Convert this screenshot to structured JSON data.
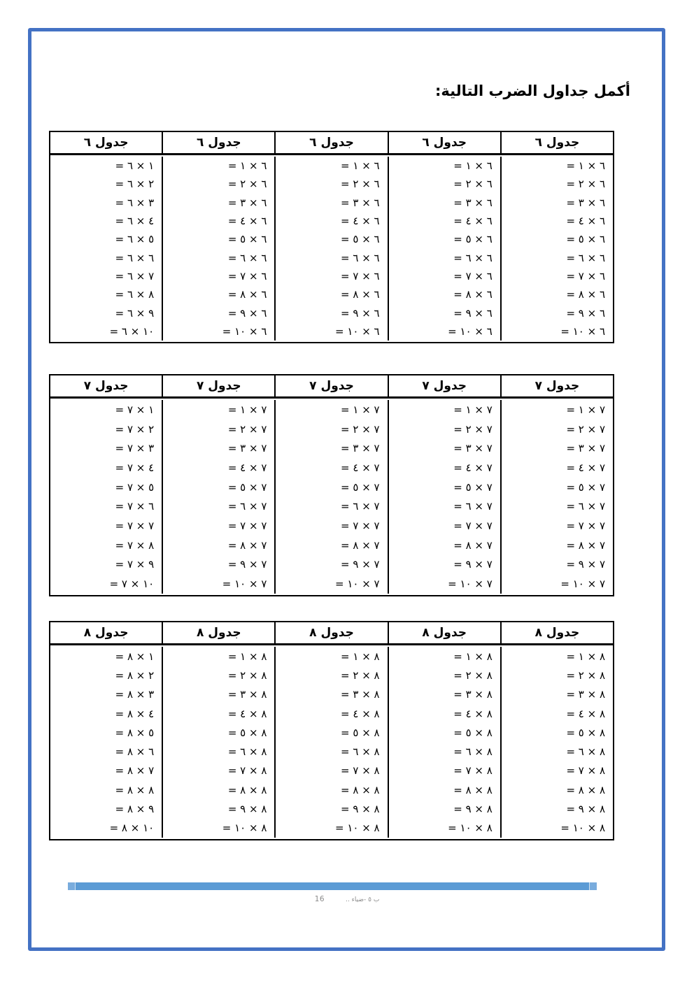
{
  "title": "أكمل جداول الضرب التالية:",
  "colors": {
    "page_border": "#4472C4",
    "table_border": "#000000",
    "footer_bar": "#5B9BD5",
    "footer_bar_cap": "#79ACDD",
    "footer_text": "#8A8A8A"
  },
  "tables": [
    {
      "id": "6",
      "headers": [
        "جدول ٦",
        "جدول ٦",
        "جدول ٦",
        "جدول ٦",
        "جدول ٦"
      ],
      "rows": [
        [
          "١ × ٦ =",
          "٦ × ١ =",
          "٦ × ١ =",
          "٦ × ١ =",
          "٦ × ١ ="
        ],
        [
          "٢ × ٦ =",
          "٦ × ٢ =",
          "٦ × ٢ =",
          "٦ × ٢ =",
          "٦ × ٢ ="
        ],
        [
          "٣ × ٦ =",
          "٦ × ٣ =",
          "٦ × ٣ =",
          "٦ × ٣ =",
          "٦ × ٣ ="
        ],
        [
          "٤ × ٦ =",
          "٦ × ٤ =",
          "٦ × ٤ =",
          "٦ × ٤ =",
          "٦ × ٤ ="
        ],
        [
          "٥ × ٦ =",
          "٦ × ٥ =",
          "٦ × ٥ =",
          "٦ × ٥ =",
          "٦ × ٥ ="
        ],
        [
          "٦ × ٦ =",
          "٦ × ٦ =",
          "٦ × ٦ =",
          "٦ × ٦ =",
          "٦ × ٦ ="
        ],
        [
          "٧ × ٦ =",
          "٦ × ٧ =",
          "٦ × ٧ =",
          "٦ × ٧ =",
          "٦ × ٧ ="
        ],
        [
          "٨ × ٦ =",
          "٦ × ٨ =",
          "٦ × ٨ =",
          "٦ × ٨ =",
          "٦ × ٨ ="
        ],
        [
          "٩ × ٦ =",
          "٦ × ٩ =",
          "٦ × ٩ =",
          "٦ × ٩ =",
          "٦ × ٩ ="
        ],
        [
          "١٠ × ٦ =",
          "٦ × ١٠ =",
          "٦ × ١٠ =",
          "٦ × ١٠ =",
          "٦ × ١٠ ="
        ]
      ]
    },
    {
      "id": "7",
      "headers": [
        "جدول ٧",
        "جدول ٧",
        "جدول ٧",
        "جدول ٧",
        "جدول ٧"
      ],
      "rows": [
        [
          "١ × ٧ =",
          "٧ × ١ =",
          "٧ × ١ =",
          "٧ × ١ =",
          "٧ × ١ ="
        ],
        [
          "٢ × ٧ =",
          "٧ × ٢ =",
          "٧ × ٢ =",
          "٧ × ٢ =",
          "٧ × ٢ ="
        ],
        [
          "٣ × ٧ =",
          "٧ × ٣ =",
          "٧ × ٣ =",
          "٧ × ٣ =",
          "٧ × ٣ ="
        ],
        [
          "٤ × ٧ =",
          "٧ × ٤ =",
          "٧ × ٤ =",
          "٧ × ٤ =",
          "٧ × ٤ ="
        ],
        [
          "٥ × ٧ =",
          "٧ × ٥ =",
          "٧ × ٥ =",
          "٧ × ٥ =",
          "٧ × ٥ ="
        ],
        [
          "٦ × ٧ =",
          "٧ × ٦ =",
          "٧ × ٦ =",
          "٧ × ٦ =",
          "٧ × ٦ ="
        ],
        [
          "٧ × ٧ =",
          "٧ × ٧ =",
          "٧ × ٧ =",
          "٧ × ٧ =",
          "٧ × ٧ ="
        ],
        [
          "٨ × ٧ =",
          "٧ × ٨ =",
          "٧ × ٨ =",
          "٧ × ٨ =",
          "٧ × ٨ ="
        ],
        [
          "٩ × ٧ =",
          "٧ × ٩ =",
          "٧ × ٩ =",
          "٧ × ٩ =",
          "٧ × ٩ ="
        ],
        [
          "١٠ × ٧ =",
          "٧ × ١٠ =",
          "٧ × ١٠ =",
          "٧ × ١٠ =",
          "٧ × ١٠ ="
        ]
      ]
    },
    {
      "id": "8",
      "headers": [
        "جدول ٨",
        "جدول ٨",
        "جدول ٨",
        "جدول ٨",
        "جدول ٨"
      ],
      "rows": [
        [
          "١ × ٨ =",
          "٨ × ١ =",
          "٨ × ١ =",
          "٨ × ١ =",
          "٨ × ١ ="
        ],
        [
          "٢ × ٨ =",
          "٨ × ٢ =",
          "٨ × ٢ =",
          "٨ × ٢ =",
          "٨ × ٢ ="
        ],
        [
          "٣ × ٨ =",
          "٨ × ٣ =",
          "٨ × ٣ =",
          "٨ × ٣ =",
          "٨ × ٣ ="
        ],
        [
          "٤ × ٨ =",
          "٨ × ٤ =",
          "٨ × ٤ =",
          "٨ × ٤ =",
          "٨ × ٤ ="
        ],
        [
          "٥ × ٨ =",
          "٨ × ٥ =",
          "٨ × ٥ =",
          "٨ × ٥ =",
          "٨ × ٥ ="
        ],
        [
          "٦ × ٨ =",
          "٨ × ٦ =",
          "٨ × ٦ =",
          "٨ × ٦ =",
          "٨ × ٦ ="
        ],
        [
          "٧ × ٨ =",
          "٨ × ٧ =",
          "٨ × ٧ =",
          "٨ × ٧ =",
          "٨ × ٧ ="
        ],
        [
          "٨ × ٨ =",
          "٨ × ٨ =",
          "٨ × ٨ =",
          "٨ × ٨ =",
          "٨ × ٨ ="
        ],
        [
          "٩ × ٨ =",
          "٨ × ٩ =",
          "٨ × ٩ =",
          "٨ × ٩ =",
          "٨ × ٩ ="
        ],
        [
          "١٠ × ٨ =",
          "٨ × ١٠ =",
          "٨ × ١٠ =",
          "٨ × ١٠ =",
          "٨ × ١٠ ="
        ]
      ]
    }
  ],
  "footer": {
    "page_number": "16",
    "label": "ب ٥ -ضياء .."
  }
}
